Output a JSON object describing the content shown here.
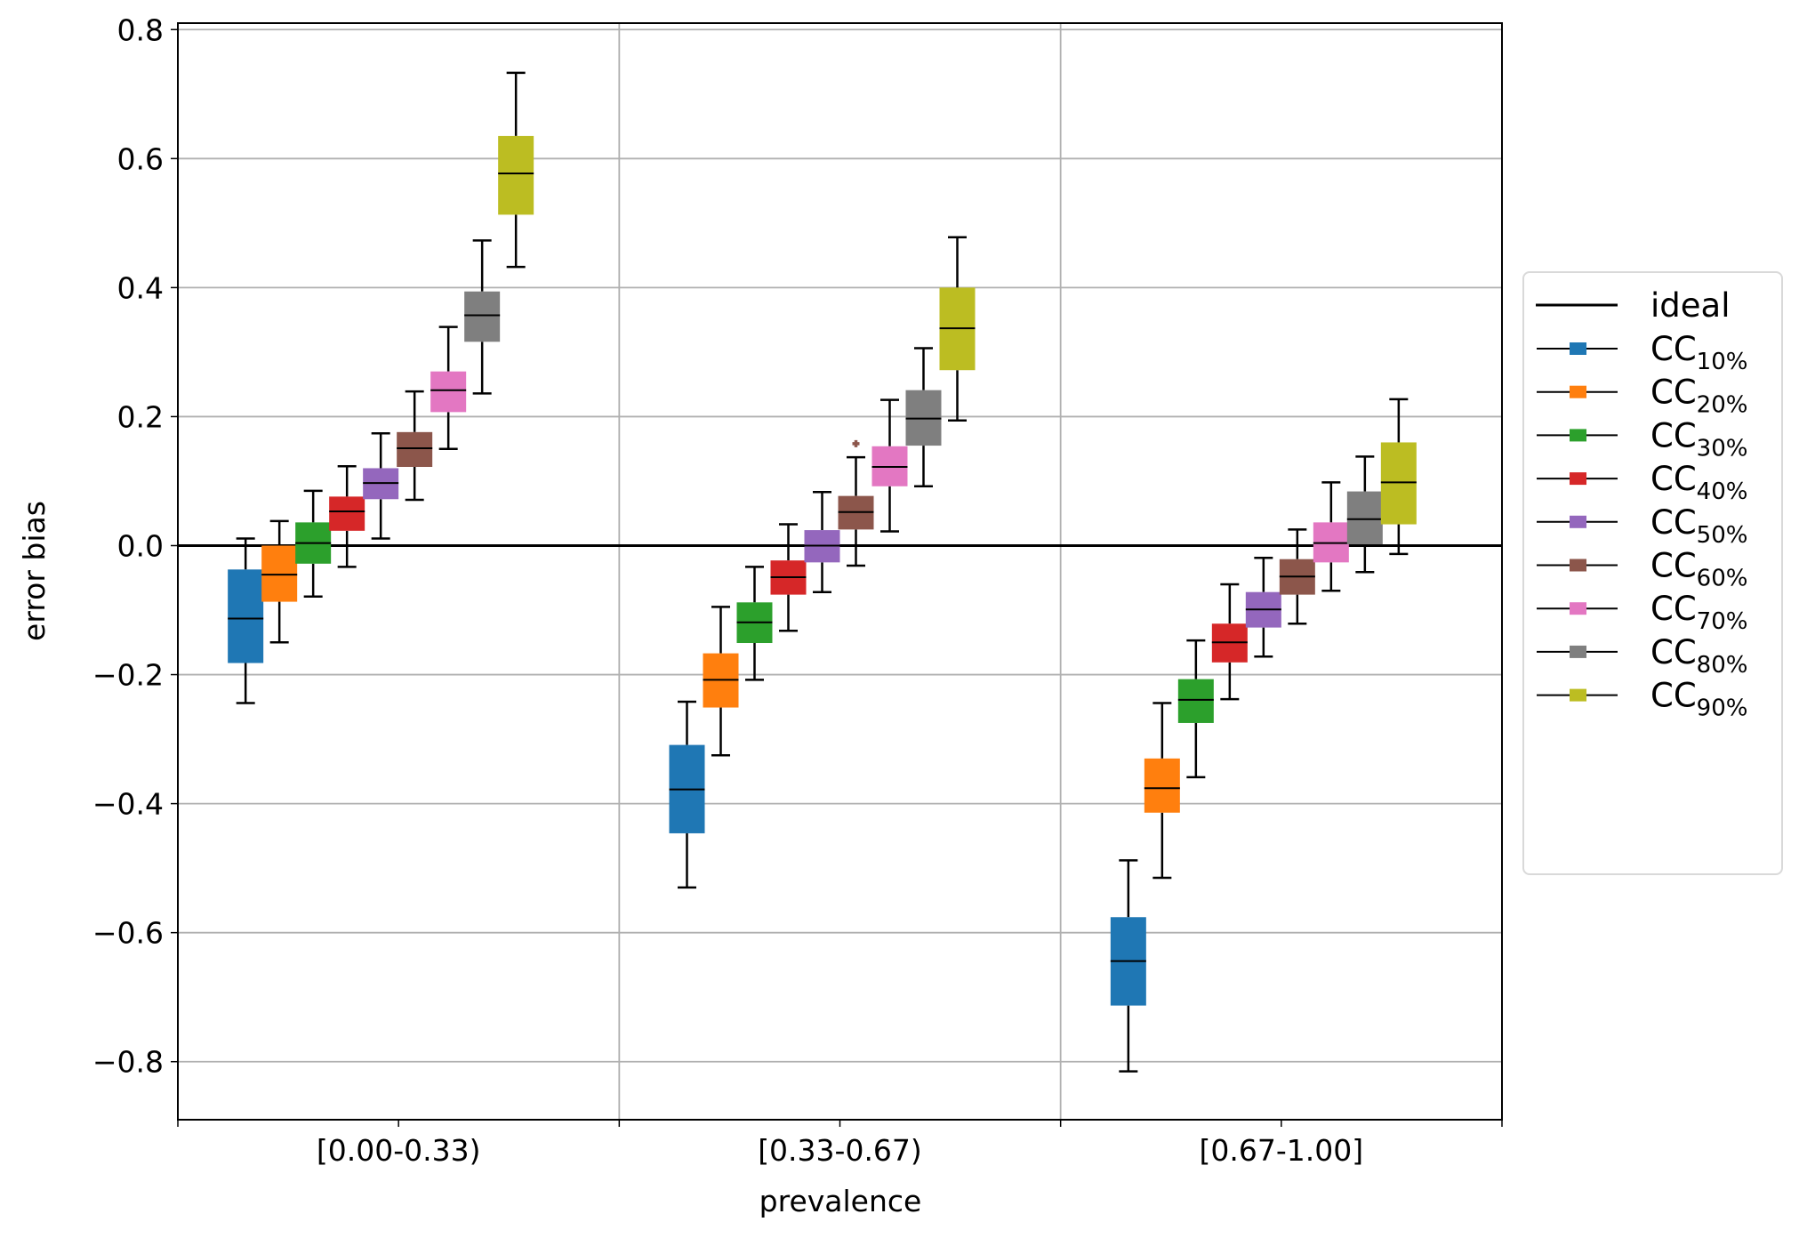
{
  "chart_data": {
    "type": "box",
    "xlabel": "prevalence",
    "ylabel": "error bias",
    "categories": [
      "[0.00-0.33)",
      "[0.33-0.67)",
      "[0.67-1.00]"
    ],
    "ylim": [
      -0.89,
      0.81
    ],
    "yticks": [
      0.8,
      0.6,
      0.4,
      0.2,
      0.0,
      -0.2,
      -0.4,
      -0.6,
      -0.8
    ],
    "ytick_labels": [
      "0.8",
      "0.6",
      "0.4",
      "0.2",
      "0.0",
      "−0.2",
      "−0.4",
      "−0.6",
      "−0.8"
    ],
    "grid": true,
    "legend_position": "outside-right",
    "reference_line": {
      "name": "ideal",
      "y": 0.0,
      "color": "#000000"
    },
    "series": [
      {
        "label": "CC",
        "sub": "10%",
        "color": "#1f77b4",
        "boxes": [
          {
            "whislo": -0.244,
            "q1": -0.182,
            "med": -0.113,
            "q3": -0.037,
            "whishi": 0.011
          },
          {
            "whislo": -0.53,
            "q1": -0.446,
            "med": -0.378,
            "q3": -0.309,
            "whishi": -0.242
          },
          {
            "whislo": -0.815,
            "q1": -0.713,
            "med": -0.644,
            "q3": -0.576,
            "whishi": -0.488
          }
        ]
      },
      {
        "label": "CC",
        "sub": "20%",
        "color": "#ff7f0e",
        "boxes": [
          {
            "whislo": -0.15,
            "q1": -0.087,
            "med": -0.045,
            "q3": 0.0,
            "whishi": 0.038
          },
          {
            "whislo": -0.325,
            "q1": -0.251,
            "med": -0.208,
            "q3": -0.167,
            "whishi": -0.095
          },
          {
            "whislo": -0.515,
            "q1": -0.414,
            "med": -0.376,
            "q3": -0.33,
            "whishi": -0.244
          }
        ]
      },
      {
        "label": "CC",
        "sub": "30%",
        "color": "#2ca02c",
        "boxes": [
          {
            "whislo": -0.079,
            "q1": -0.028,
            "med": 0.004,
            "q3": 0.036,
            "whishi": 0.085
          },
          {
            "whislo": -0.208,
            "q1": -0.151,
            "med": -0.119,
            "q3": -0.088,
            "whishi": -0.033
          },
          {
            "whislo": -0.359,
            "q1": -0.275,
            "med": -0.239,
            "q3": -0.207,
            "whishi": -0.147
          }
        ]
      },
      {
        "label": "CC",
        "sub": "40%",
        "color": "#d62728",
        "boxes": [
          {
            "whislo": -0.033,
            "q1": 0.023,
            "med": 0.053,
            "q3": 0.076,
            "whishi": 0.123
          },
          {
            "whislo": -0.132,
            "q1": -0.076,
            "med": -0.049,
            "q3": -0.023,
            "whishi": 0.033
          },
          {
            "whislo": -0.238,
            "q1": -0.181,
            "med": -0.15,
            "q3": -0.121,
            "whishi": -0.06
          }
        ]
      },
      {
        "label": "CC",
        "sub": "50%",
        "color": "#9467bd",
        "boxes": [
          {
            "whislo": 0.011,
            "q1": 0.072,
            "med": 0.097,
            "q3": 0.12,
            "whishi": 0.174
          },
          {
            "whislo": -0.072,
            "q1": -0.026,
            "med": 0.0,
            "q3": 0.024,
            "whishi": 0.083
          },
          {
            "whislo": -0.172,
            "q1": -0.127,
            "med": -0.099,
            "q3": -0.072,
            "whishi": -0.019
          }
        ]
      },
      {
        "label": "CC",
        "sub": "60%",
        "color": "#8c564b",
        "boxes": [
          {
            "whislo": 0.071,
            "q1": 0.122,
            "med": 0.151,
            "q3": 0.176,
            "whishi": 0.239
          },
          {
            "whislo": -0.031,
            "q1": 0.025,
            "med": 0.052,
            "q3": 0.077,
            "whishi": 0.137,
            "fliers": [
              0.158
            ]
          },
          {
            "whislo": -0.121,
            "q1": -0.076,
            "med": -0.048,
            "q3": -0.021,
            "whishi": 0.025
          }
        ]
      },
      {
        "label": "CC",
        "sub": "70%",
        "color": "#e377c2",
        "boxes": [
          {
            "whislo": 0.15,
            "q1": 0.207,
            "med": 0.241,
            "q3": 0.27,
            "whishi": 0.339
          },
          {
            "whislo": 0.022,
            "q1": 0.092,
            "med": 0.122,
            "q3": 0.154,
            "whishi": 0.226
          },
          {
            "whislo": -0.07,
            "q1": -0.026,
            "med": 0.004,
            "q3": 0.036,
            "whishi": 0.098
          }
        ]
      },
      {
        "label": "CC",
        "sub": "80%",
        "color": "#7f7f7f",
        "boxes": [
          {
            "whislo": 0.236,
            "q1": 0.316,
            "med": 0.357,
            "q3": 0.394,
            "whishi": 0.473
          },
          {
            "whislo": 0.092,
            "q1": 0.155,
            "med": 0.197,
            "q3": 0.241,
            "whishi": 0.306
          },
          {
            "whislo": -0.041,
            "q1": 0.002,
            "med": 0.041,
            "q3": 0.084,
            "whishi": 0.138
          }
        ]
      },
      {
        "label": "CC",
        "sub": "90%",
        "color": "#bcbd22",
        "boxes": [
          {
            "whislo": 0.432,
            "q1": 0.513,
            "med": 0.577,
            "q3": 0.635,
            "whishi": 0.733
          },
          {
            "whislo": 0.194,
            "q1": 0.272,
            "med": 0.337,
            "q3": 0.4,
            "whishi": 0.478
          },
          {
            "whislo": -0.013,
            "q1": 0.033,
            "med": 0.098,
            "q3": 0.16,
            "whishi": 0.227
          }
        ]
      }
    ]
  }
}
